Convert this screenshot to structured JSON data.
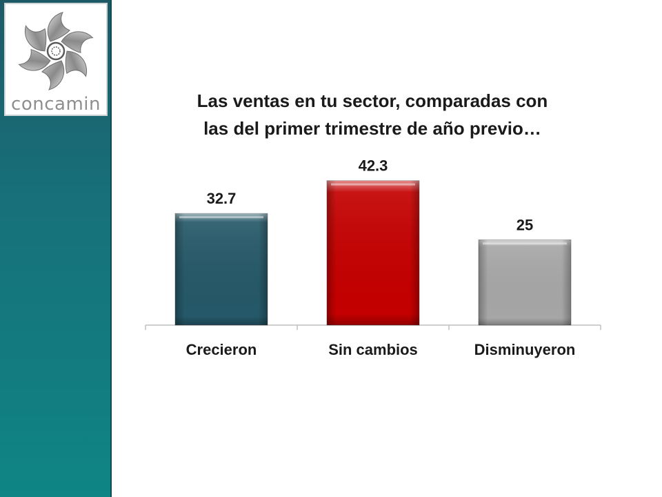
{
  "brand": {
    "logo_text": "concamin"
  },
  "chart_data": {
    "type": "bar",
    "title": "Las ventas en tu sector, comparadas con las del primer trimestre de año previo…",
    "categories": [
      "Crecieron",
      "Sin cambios",
      "Disminuyeron"
    ],
    "values": [
      32.7,
      42.3,
      25
    ],
    "value_labels": [
      "32.7",
      "42.3",
      "25"
    ],
    "colors": [
      "#255868",
      "#c40000",
      "#a6a6a6"
    ],
    "ylim": [
      0,
      50
    ],
    "grid": false,
    "legend": "none"
  }
}
